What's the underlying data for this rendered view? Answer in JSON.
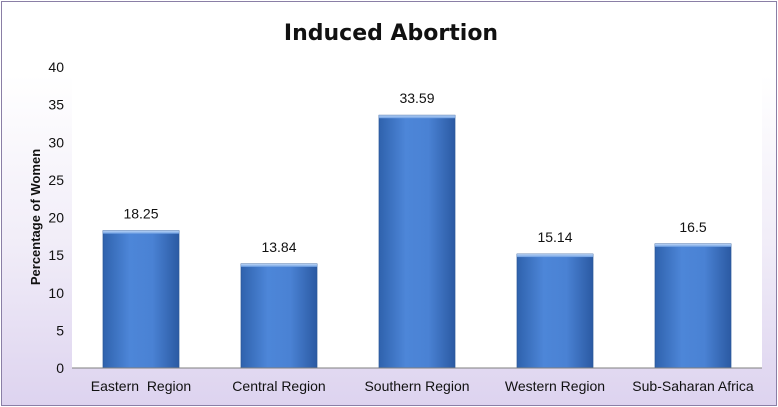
{
  "chart_data": {
    "type": "bar",
    "title": "Induced Abortion",
    "xlabel": "",
    "ylabel": "Percentage of Women",
    "categories": [
      "Eastern  Region",
      "Central Region",
      "Southern Region",
      "Western Region",
      "Sub-Saharan Africa"
    ],
    "values": [
      18.25,
      13.84,
      33.59,
      15.14,
      16.5
    ],
    "value_labels": [
      "18.25",
      "13.84",
      "33.59",
      "15.14",
      "16.5"
    ],
    "ylim": [
      0,
      40
    ],
    "yticks": [
      0,
      5,
      10,
      15,
      20,
      25,
      30,
      35,
      40
    ],
    "ytick_labels": [
      "0",
      "5",
      "10",
      "15",
      "20",
      "25",
      "30",
      "35",
      "40"
    ],
    "grid": false,
    "legend": "none",
    "bar_color": "#4a7fd0"
  }
}
